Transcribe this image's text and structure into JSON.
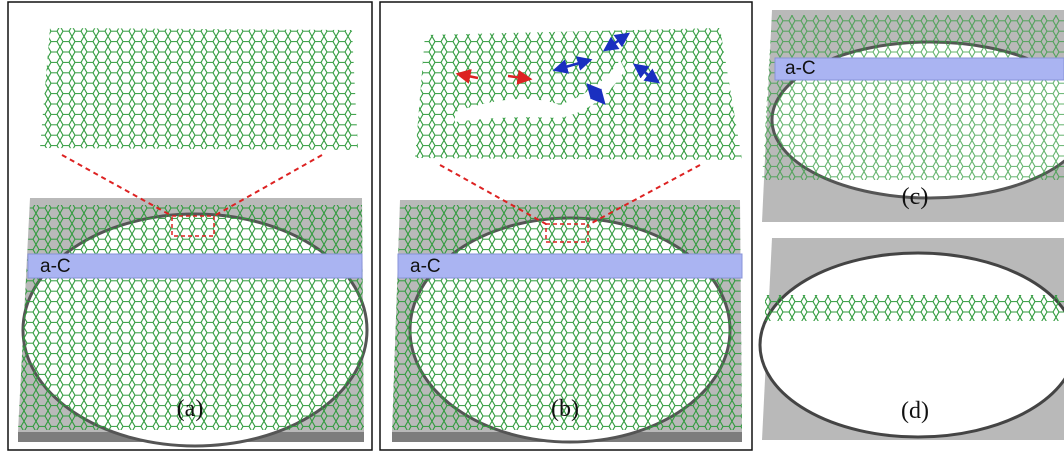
{
  "panels": [
    {
      "label": "(a)",
      "bar_label": "a-C"
    },
    {
      "label": "(b)",
      "bar_label": "a-C"
    },
    {
      "label": "(c)",
      "bar_label": "a-C"
    },
    {
      "label": "(d)"
    }
  ]
}
